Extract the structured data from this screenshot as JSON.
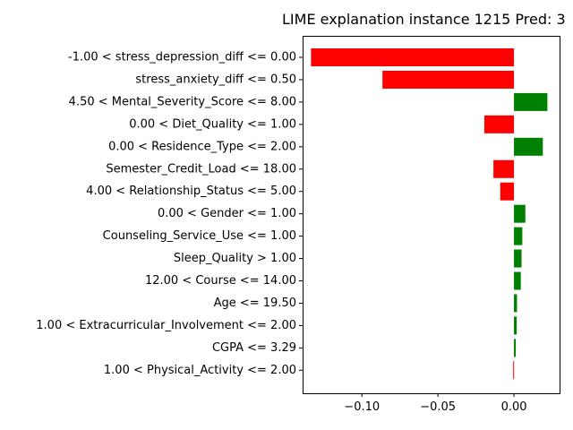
{
  "chart_data": {
    "type": "bar",
    "orientation": "horizontal",
    "title": "LIME explanation instance 1215 Pred: 3",
    "xlabel": "",
    "ylabel": "",
    "xlim": [
      -0.139,
      0.03
    ],
    "xticks": [
      -0.1,
      -0.05,
      0.0
    ],
    "xtick_labels": [
      "−0.10",
      "−0.05",
      "0.00"
    ],
    "grid": false,
    "legend": "none",
    "positive_color": "#008000",
    "negative_color": "#ff0000",
    "categories": [
      "-1.00 < stress_depression_diff <= 0.00",
      "stress_anxiety_diff <= 0.50",
      "4.50 < Mental_Severity_Score <= 8.00",
      "0.00 < Diet_Quality <= 1.00",
      "0.00 < Residence_Type <= 2.00",
      "Semester_Credit_Load <= 18.00",
      "4.00 < Relationship_Status <= 5.00",
      "0.00 < Gender <= 1.00",
      "Counseling_Service_Use <= 1.00",
      "Sleep_Quality > 1.00",
      "12.00 < Course <= 14.00",
      "Age <= 19.50",
      "1.00 < Extracurricular_Involvement <= 2.00",
      "CGPA <= 3.29",
      "1.00 < Physical_Activity <= 2.00"
    ],
    "values": [
      -0.1335,
      -0.0865,
      0.022,
      -0.0195,
      0.019,
      -0.0135,
      -0.009,
      0.0075,
      0.0055,
      0.005,
      0.0045,
      0.002,
      0.0018,
      0.0012,
      -0.0005
    ]
  }
}
